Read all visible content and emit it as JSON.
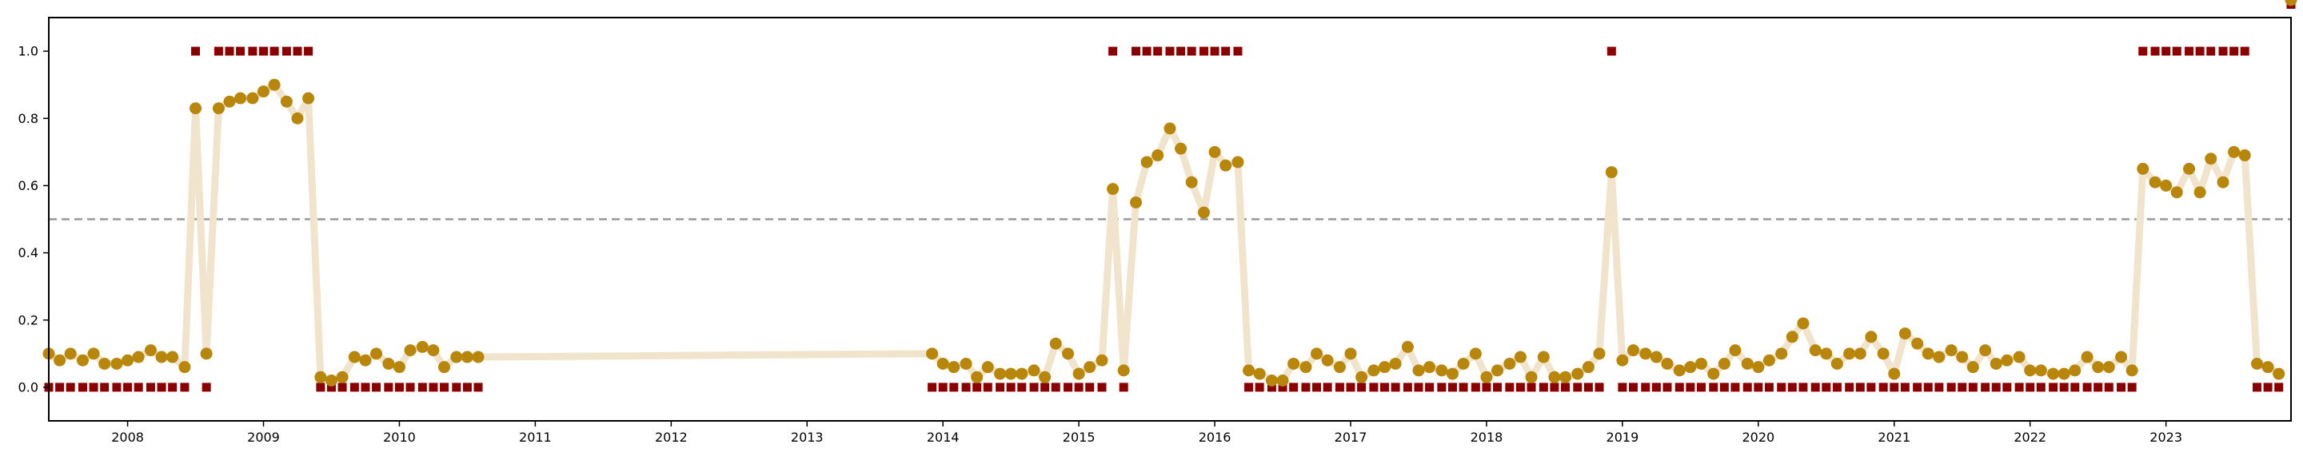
{
  "chart_data": {
    "type": "line",
    "title": "",
    "xlabel": "",
    "ylabel": "",
    "x_unit": "year (decimal)",
    "xlim": [
      2007.42,
      2023.92
    ],
    "ylim": [
      -0.1,
      1.1
    ],
    "x_ticks": [
      {
        "value": 2008,
        "label": "2008"
      },
      {
        "value": 2009,
        "label": "2009"
      },
      {
        "value": 2010,
        "label": "2010"
      },
      {
        "value": 2011,
        "label": "2011"
      },
      {
        "value": 2012,
        "label": "2012"
      },
      {
        "value": 2013,
        "label": "2013"
      },
      {
        "value": 2014,
        "label": "2014"
      },
      {
        "value": 2015,
        "label": "2015"
      },
      {
        "value": 2016,
        "label": "2016"
      },
      {
        "value": 2017,
        "label": "2017"
      },
      {
        "value": 2018,
        "label": "2018"
      },
      {
        "value": 2019,
        "label": "2019"
      },
      {
        "value": 2020,
        "label": "2020"
      },
      {
        "value": 2021,
        "label": "2021"
      },
      {
        "value": 2022,
        "label": "2022"
      },
      {
        "value": 2023,
        "label": "2023"
      }
    ],
    "y_ticks": [
      {
        "value": 0.0,
        "label": "0.0"
      },
      {
        "value": 0.2,
        "label": "0.2"
      },
      {
        "value": 0.4,
        "label": "0.4"
      },
      {
        "value": 0.6,
        "label": "0.6"
      },
      {
        "value": 0.8,
        "label": "0.8"
      },
      {
        "value": 1.0,
        "label": "1.0"
      }
    ],
    "threshold": 0.5,
    "grid": false,
    "legend": "none",
    "colors": {
      "line": "#f0e5cc",
      "point": "#b8860b",
      "marker": "#8b0000",
      "threshold": "#999999",
      "axis": "#000000"
    },
    "series": [
      {
        "x": [
          2007.42,
          2007.5,
          2007.58,
          2007.67,
          2007.75,
          2007.83,
          2007.92,
          2008.0,
          2008.08,
          2008.17,
          2008.25,
          2008.33,
          2008.42,
          2008.5,
          2008.58,
          2008.67,
          2008.75,
          2008.83,
          2008.92,
          2009.0,
          2009.08,
          2009.17,
          2009.25,
          2009.33,
          2009.42,
          2009.5,
          2009.58,
          2009.67,
          2009.75,
          2009.83,
          2009.92,
          2010.0,
          2010.08,
          2010.17,
          2010.25,
          2010.33,
          2010.42,
          2010.5,
          2010.58,
          2013.92,
          2014.0,
          2014.08,
          2014.17,
          2014.25,
          2014.33,
          2014.42,
          2014.5,
          2014.58,
          2014.67,
          2014.75,
          2014.83,
          2014.92,
          2015.0,
          2015.08,
          2015.17,
          2015.25,
          2015.33,
          2015.42,
          2015.5,
          2015.58,
          2015.67,
          2015.75,
          2015.83,
          2015.92,
          2016.0,
          2016.08,
          2016.17,
          2016.25,
          2016.33,
          2016.42,
          2016.5,
          2016.58,
          2016.67,
          2016.75,
          2016.83,
          2016.92,
          2017.0,
          2017.08,
          2017.17,
          2017.25,
          2017.33,
          2017.42,
          2017.5,
          2017.58,
          2017.67,
          2017.75,
          2017.83,
          2017.92,
          2018.0,
          2018.08,
          2018.17,
          2018.25,
          2018.33,
          2018.42,
          2018.5,
          2018.58,
          2018.67,
          2018.75,
          2018.83,
          2018.92,
          2019.0,
          2019.08,
          2019.17,
          2019.25,
          2019.33,
          2019.42,
          2019.5,
          2019.58,
          2019.67,
          2019.75,
          2019.83,
          2019.92,
          2020.0,
          2020.08,
          2020.17,
          2020.25,
          2020.33,
          2020.42,
          2020.5,
          2020.58,
          2020.67,
          2020.75,
          2020.83,
          2020.92,
          2021.0,
          2021.08,
          2021.17,
          2021.25,
          2021.33,
          2021.42,
          2021.5,
          2021.58,
          2021.67,
          2021.75,
          2021.83,
          2021.92,
          2022.0,
          2022.08,
          2022.17,
          2022.25,
          2022.33,
          2022.42,
          2022.5,
          2022.58,
          2022.67,
          2022.75,
          2022.83,
          2022.92,
          2023.0,
          2023.08,
          2023.17,
          2023.25,
          2023.33,
          2023.42,
          2023.5,
          2023.58,
          2023.67,
          2023.75,
          2023.83,
          2023.92
        ],
        "probability": [
          0.1,
          0.08,
          0.1,
          0.08,
          0.1,
          0.07,
          0.07,
          0.08,
          0.09,
          0.11,
          0.09,
          0.09,
          0.06,
          0.83,
          0.1,
          0.83,
          0.85,
          0.86,
          0.86,
          0.88,
          0.9,
          0.85,
          0.8,
          0.86,
          0.03,
          0.02,
          0.03,
          0.09,
          0.08,
          0.1,
          0.07,
          0.06,
          0.11,
          0.12,
          0.11,
          0.06,
          0.09,
          0.09,
          0.09,
          0.1,
          0.07,
          0.06,
          0.07,
          0.03,
          0.06,
          0.04,
          0.04,
          0.04,
          0.05,
          0.03,
          0.13,
          0.1,
          0.04,
          0.06,
          0.08,
          0.59,
          0.05,
          0.55,
          0.67,
          0.69,
          0.77,
          0.71,
          0.61,
          0.52,
          0.7,
          0.66,
          0.67,
          0.05,
          0.04,
          0.02,
          0.02,
          0.07,
          0.06,
          0.1,
          0.08,
          0.06,
          0.1,
          0.03,
          0.05,
          0.06,
          0.07,
          0.12,
          0.05,
          0.06,
          0.05,
          0.04,
          0.07,
          0.1,
          0.03,
          0.05,
          0.07,
          0.09,
          0.03,
          0.09,
          0.03,
          0.03,
          0.04,
          0.06,
          0.1,
          0.64,
          0.08,
          0.11,
          0.1,
          0.09,
          0.07,
          0.05,
          0.06,
          0.07,
          0.04,
          0.07,
          0.11,
          0.07,
          0.06,
          0.08,
          0.1,
          0.15,
          0.19,
          0.11,
          0.1,
          0.07,
          0.1,
          0.1,
          0.15,
          0.1,
          0.04,
          0.16,
          0.13,
          0.1,
          0.09,
          0.11,
          0.09,
          0.06,
          0.11,
          0.07,
          0.08,
          0.09,
          0.05,
          0.05,
          0.04,
          0.04,
          0.05,
          0.09,
          0.06,
          0.06,
          0.09,
          0.05,
          0.65,
          0.61,
          0.6,
          0.58,
          0.65,
          0.58,
          0.68,
          0.61,
          0.7,
          0.69,
          0.07,
          0.06,
          0.04
        ],
        "label": [
          0,
          0,
          0,
          0,
          0,
          0,
          0,
          0,
          0,
          0,
          0,
          0,
          0,
          1,
          0,
          1,
          1,
          1,
          1,
          1,
          1,
          1,
          1,
          1,
          0,
          0,
          0,
          0,
          0,
          0,
          0,
          0,
          0,
          0,
          0,
          0,
          0,
          0,
          0,
          0,
          0,
          0,
          0,
          0,
          0,
          0,
          0,
          0,
          0,
          0,
          0,
          0,
          0,
          0,
          0,
          1,
          0,
          1,
          1,
          1,
          1,
          1,
          1,
          1,
          1,
          1,
          1,
          0,
          0,
          0,
          0,
          0,
          0,
          0,
          0,
          0,
          0,
          0,
          0,
          0,
          0,
          0,
          0,
          0,
          0,
          0,
          0,
          0,
          0,
          0,
          0,
          0,
          0,
          0,
          0,
          0,
          0,
          0,
          0,
          1,
          0,
          0,
          0,
          0,
          0,
          0,
          0,
          0,
          0,
          0,
          0,
          0,
          0,
          0,
          0,
          0,
          0,
          0,
          0,
          0,
          0,
          0,
          0,
          0,
          0,
          0,
          0,
          0,
          0,
          0,
          0,
          0,
          0,
          0,
          0,
          0,
          0,
          0,
          0,
          0,
          0,
          0,
          0,
          0,
          0,
          0,
          1,
          1,
          1,
          1,
          1,
          1,
          1,
          1,
          1,
          1,
          0,
          0,
          0
        ]
      }
    ]
  }
}
